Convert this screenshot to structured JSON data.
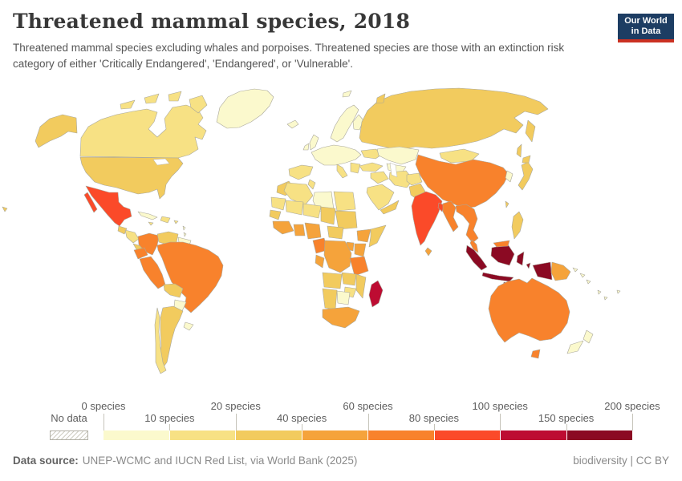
{
  "header": {
    "title": "Threatened mammal species, 2018",
    "subtitle": "Threatened mammal species excluding whales and porpoises. Threatened species are those with an extinction risk category of either 'Critically Endangered', 'Endangered', or 'Vulnerable'.",
    "logo": {
      "line1": "Our World",
      "line2": "in Data",
      "bg": "#1d3d63",
      "stripe": "#cb3122"
    }
  },
  "legend": {
    "no_data_label": "No data",
    "tick_labels": [
      "0 species",
      "10 species",
      "20 species",
      "40 species",
      "60 species",
      "80 species",
      "100 species",
      "150 species",
      "200 species"
    ]
  },
  "footer": {
    "source_label": "Data source:",
    "source_value": "UNEP-WCMC and IUCN Red List, via World Bank (2025)",
    "right_text": "biodiversity | CC BY"
  },
  "chart_data": {
    "type": "choropleth-map",
    "title": "Threatened mammal species, 2018",
    "unit": "species",
    "legend_edges": [
      0,
      10,
      20,
      40,
      60,
      80,
      100,
      150,
      200
    ],
    "bins": [
      {
        "range": "0–10 species",
        "color": "#FBF9CD"
      },
      {
        "range": "10–20 species",
        "color": "#F7E184"
      },
      {
        "range": "20–40 species",
        "color": "#F2CB5E"
      },
      {
        "range": "40–60 species",
        "color": "#F5A33B"
      },
      {
        "range": "60–80 species",
        "color": "#F8822C"
      },
      {
        "range": "80–100 species",
        "color": "#FB4A29"
      },
      {
        "range": "100–150 species",
        "color": "#BD0C32"
      },
      {
        "range": "150–200 species",
        "color": "#8B0A23"
      }
    ],
    "no_data_style": "hatched",
    "countries": {
      "greenland": {
        "label": "Greenland",
        "bin": 0
      },
      "iceland": {
        "label": "Iceland",
        "bin": 0
      },
      "canada": {
        "label": "Canada",
        "bin": 1
      },
      "usa": {
        "label": "United States",
        "bin": 2
      },
      "mexico": {
        "label": "Mexico",
        "bin": 5
      },
      "guatemala": {
        "label": "Guatemala",
        "bin": 2
      },
      "honduras_nicaragua": {
        "label": "Honduras / Nicaragua",
        "bin": 1
      },
      "costa_rica_panama": {
        "label": "Costa Rica / Panama",
        "bin": 2
      },
      "cuba": {
        "label": "Cuba",
        "bin": 0
      },
      "hispaniola": {
        "label": "Hispaniola",
        "bin": 1
      },
      "jamaica": {
        "label": "Jamaica",
        "bin": 1
      },
      "puerto_rico": {
        "label": "Puerto Rico",
        "bin": 1
      },
      "lesser_antilles": {
        "label": "Lesser Antilles",
        "bin": 0
      },
      "colombia": {
        "label": "Colombia",
        "bin": 4
      },
      "venezuela": {
        "label": "Venezuela",
        "bin": 2
      },
      "guianas": {
        "label": "Guyana / Suriname",
        "bin": 0
      },
      "ecuador": {
        "label": "Ecuador",
        "bin": 4
      },
      "peru": {
        "label": "Peru",
        "bin": 4
      },
      "brazil": {
        "label": "Brazil",
        "bin": 4
      },
      "bolivia": {
        "label": "Bolivia",
        "bin": 2
      },
      "paraguay": {
        "label": "Paraguay",
        "bin": 0
      },
      "uruguay": {
        "label": "Uruguay",
        "bin": 0
      },
      "argentina": {
        "label": "Argentina",
        "bin": 2
      },
      "chile": {
        "label": "Chile",
        "bin": 1
      },
      "united_kingdom": {
        "label": "United Kingdom",
        "bin": 0
      },
      "ireland": {
        "label": "Ireland",
        "bin": 0
      },
      "scandinavia": {
        "label": "Norway / Sweden",
        "bin": 0
      },
      "finland": {
        "label": "Finland",
        "bin": 0
      },
      "central_europe": {
        "label": "Central Europe",
        "bin": 0
      },
      "iberia": {
        "label": "Spain / Portugal",
        "bin": 1
      },
      "italy": {
        "label": "Italy",
        "bin": 1
      },
      "balkans": {
        "label": "Balkans / Greece",
        "bin": 1
      },
      "ukraine": {
        "label": "Ukraine",
        "bin": 1
      },
      "russia": {
        "label": "Russia",
        "bin": 2
      },
      "kazakhstan": {
        "label": "Kazakhstan",
        "bin": 0
      },
      "central_asia": {
        "label": "Central Asia",
        "bin": 0
      },
      "mongolia": {
        "label": "Mongolia",
        "bin": 1
      },
      "turkey": {
        "label": "Turkey",
        "bin": 1
      },
      "middle_east": {
        "label": "Syria / Iraq",
        "bin": 1
      },
      "iran": {
        "label": "Iran",
        "bin": 1
      },
      "saudi_arabia": {
        "label": "Saudi Arabia",
        "bin": 1
      },
      "yemen_oman": {
        "label": "Yemen / Oman",
        "bin": 2
      },
      "afghanistan": {
        "label": "Afghanistan",
        "bin": 1
      },
      "pakistan": {
        "label": "Pakistan",
        "bin": 2
      },
      "india": {
        "label": "India",
        "bin": 5
      },
      "sri_lanka": {
        "label": "Sri Lanka",
        "bin": 3
      },
      "bangladesh": {
        "label": "Bangladesh",
        "bin": 5
      },
      "china": {
        "label": "China",
        "bin": 4
      },
      "taiwan": {
        "label": "Taiwan",
        "bin": 2
      },
      "myanmar": {
        "label": "Myanmar",
        "bin": 4
      },
      "indochina": {
        "label": "Thailand / Vietnam / Laos",
        "bin": 4
      },
      "malaysia": {
        "label": "Malaysia",
        "bin": 4
      },
      "korea": {
        "label": "South Korea",
        "bin": 0
      },
      "japan": {
        "label": "Japan",
        "bin": 2
      },
      "philippines": {
        "label": "Philippines",
        "bin": 2
      },
      "indonesia": {
        "label": "Indonesia",
        "bin": 7
      },
      "papua_new_guinea": {
        "label": "Papua New Guinea",
        "bin": 3
      },
      "pacific_islands": {
        "label": "Pacific Islands",
        "bin": 0
      },
      "australia": {
        "label": "Australia",
        "bin": 4
      },
      "new_zealand": {
        "label": "New Zealand",
        "bin": 0
      },
      "morocco": {
        "label": "Morocco",
        "bin": 2
      },
      "western_sahara": {
        "label": "W. Sahara / Mauritania",
        "bin": 1
      },
      "algeria": {
        "label": "Algeria",
        "bin": 1
      },
      "tunisia": {
        "label": "Tunisia",
        "bin": 1
      },
      "libya": {
        "label": "Libya",
        "bin": 0
      },
      "egypt": {
        "label": "Egypt",
        "bin": 1
      },
      "mali": {
        "label": "Mali",
        "bin": 1
      },
      "niger": {
        "label": "Niger",
        "bin": 1
      },
      "chad": {
        "label": "Chad",
        "bin": 2
      },
      "sudan": {
        "label": "Sudan",
        "bin": 2
      },
      "senegal": {
        "label": "Senegal",
        "bin": 2
      },
      "guinea_coast": {
        "label": "Guinea / Liberia / Côte d'Ivoire",
        "bin": 3
      },
      "ghana_benin": {
        "label": "Ghana / Togo / Benin",
        "bin": 3
      },
      "nigeria": {
        "label": "Nigeria",
        "bin": 3
      },
      "cameroon": {
        "label": "Cameroon",
        "bin": 4
      },
      "central_african_republic": {
        "label": "Central African Republic",
        "bin": 2
      },
      "ethiopia": {
        "label": "Ethiopia",
        "bin": 3
      },
      "somalia": {
        "label": "Somalia",
        "bin": 2
      },
      "kenya": {
        "label": "Kenya",
        "bin": 3
      },
      "uganda": {
        "label": "Uganda",
        "bin": 3
      },
      "drc": {
        "label": "Democratic Republic of Congo",
        "bin": 3
      },
      "gabon_congo": {
        "label": "Gabon / Congo",
        "bin": 3
      },
      "tanzania": {
        "label": "Tanzania",
        "bin": 4
      },
      "angola": {
        "label": "Angola",
        "bin": 2
      },
      "zambia": {
        "label": "Zambia",
        "bin": 2
      },
      "mozambique": {
        "label": "Mozambique / Malawi",
        "bin": 2
      },
      "zimbabwe": {
        "label": "Zimbabwe",
        "bin": 1
      },
      "namibia": {
        "label": "Namibia",
        "bin": 2
      },
      "botswana": {
        "label": "Botswana",
        "bin": 0
      },
      "south_africa": {
        "label": "South Africa",
        "bin": 3
      },
      "madagascar": {
        "label": "Madagascar",
        "bin": 6
      }
    }
  }
}
